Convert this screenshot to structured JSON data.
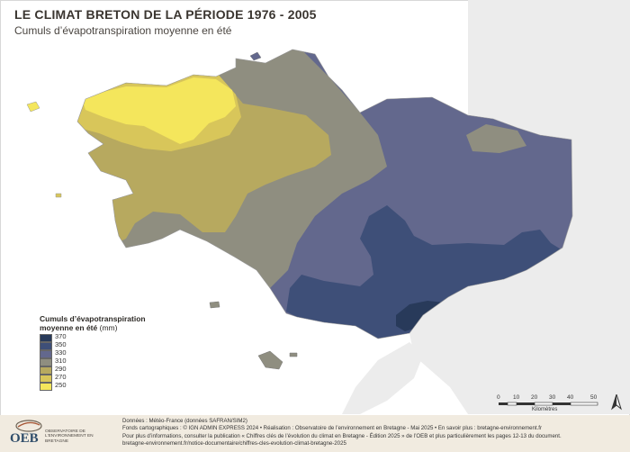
{
  "title": "LE CLIMAT BRETON DE LA PÉRIODE 1976 - 2005",
  "subtitle": "Cumuls d’évapotranspiration moyenne en été",
  "legend": {
    "title": "Cumuls d’évapotranspiration moyenne en été",
    "unit": "(mm)",
    "classes": [
      {
        "value": "370",
        "color": "#283a5a"
      },
      {
        "value": "350",
        "color": "#3e4f78"
      },
      {
        "value": "330",
        "color": "#63688d"
      },
      {
        "value": "310",
        "color": "#8f8e80"
      },
      {
        "value": "290",
        "color": "#b7a95f"
      },
      {
        "value": "270",
        "color": "#d8c65a"
      },
      {
        "value": "250",
        "color": "#f4e65c"
      }
    ]
  },
  "colors": {
    "sea": "#ffffff",
    "neighbor_land": "#ececec",
    "outline": "#9a9a9a"
  },
  "scale": {
    "labels": [
      "0",
      "10",
      "20",
      "30",
      "40",
      "50"
    ],
    "unit": "Kilomètres"
  },
  "north_icon": "north-arrow-icon",
  "logo": {
    "text": "OEB",
    "subtitle": "OBSERVATOIRE DE L'ENVIRONNEMENT EN BRETAGNE"
  },
  "credits": {
    "line1": "Données : Météo-France (données SAFRAN/SIM2)",
    "line2": "Fonds cartographiques : © IGN ADMIN EXPRESS 2024 • Réalisation : Observatoire de l’environnement en Bretagne - Mai 2025 • En savoir plus : bretagne-environnement.fr",
    "line3": "Pour plus d’informations, consulter la publication « Chiffres clés de l’évolution du climat en Bretagne - Édition 2025 » de l’OEB et plus particulièrement les pages 12-13 du document.",
    "line4": "bretagne-environnement.fr/notice-documentaire/chiffres-cles-evolution-climat-bretagne-2025"
  }
}
